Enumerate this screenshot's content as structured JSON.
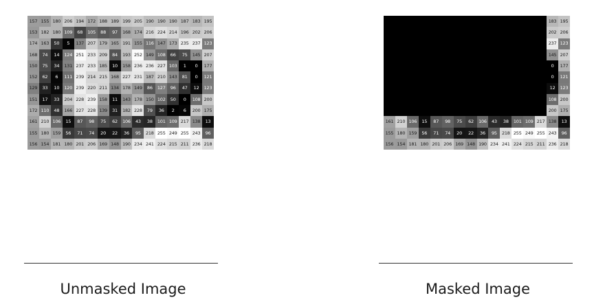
{
  "left_caption": "Unmasked Image",
  "right_caption": "Masked Image",
  "mask_color": "#000000",
  "mask_region": {
    "rows": [
      0,
      13
    ],
    "cols": [
      0,
      8
    ]
  },
  "pixel_values": [
    [
      157,
      153,
      174,
      168,
      150,
      152,
      129,
      151,
      172,
      161,
      155,
      156
    ],
    [
      155,
      182,
      163,
      74,
      75,
      62,
      33,
      17,
      110,
      210,
      180,
      154
    ],
    [
      180,
      180,
      50,
      14,
      34,
      6,
      10,
      33,
      48,
      106,
      159,
      181
    ],
    [
      206,
      109,
      5,
      124,
      131,
      111,
      120,
      204,
      166,
      15,
      56,
      180
    ],
    [
      194,
      68,
      137,
      251,
      237,
      239,
      239,
      228,
      227,
      87,
      71,
      201
    ],
    [
      172,
      105,
      207,
      233,
      233,
      214,
      220,
      239,
      228,
      98,
      74,
      206
    ],
    [
      188,
      88,
      179,
      209,
      185,
      215,
      211,
      158,
      139,
      75,
      20,
      169
    ],
    [
      189,
      97,
      165,
      84,
      10,
      168,
      134,
      11,
      31,
      62,
      22,
      148
    ],
    [
      199,
      168,
      191,
      193,
      158,
      227,
      178,
      143,
      182,
      106,
      36,
      190
    ],
    [
      205,
      174,
      155,
      252,
      236,
      231,
      149,
      178,
      228,
      43,
      95,
      234
    ],
    [
      190,
      216,
      116,
      149,
      236,
      187,
      86,
      150,
      79,
      38,
      218,
      241
    ],
    [
      190,
      224,
      147,
      108,
      227,
      210,
      127,
      102,
      36,
      101,
      255,
      224
    ],
    [
      190,
      214,
      173,
      66,
      103,
      143,
      96,
      50,
      2,
      109,
      249,
      215
    ],
    [
      187,
      196,
      235,
      75,
      1,
      81,
      47,
      0,
      6,
      217,
      255,
      211
    ],
    [
      183,
      202,
      237,
      145,
      0,
      0,
      12,
      108,
      200,
      138,
      243,
      236
    ],
    [
      195,
      206,
      123,
      207,
      177,
      121,
      123,
      200,
      175,
      13,
      96,
      218
    ]
  ]
}
